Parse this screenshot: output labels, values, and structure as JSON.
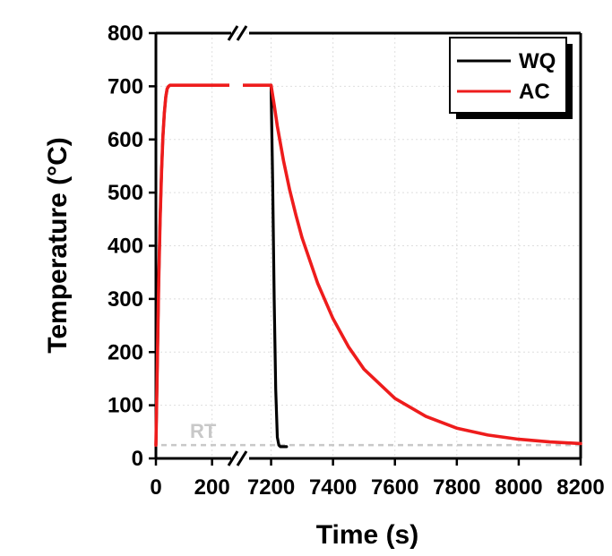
{
  "chart_data": {
    "type": "line",
    "xlabel": "Time (s)",
    "ylabel": "Temperature (°C)",
    "ylim": [
      0,
      800
    ],
    "y_ticks": [
      0,
      100,
      200,
      300,
      400,
      500,
      600,
      700,
      800
    ],
    "y_tick_labels": [
      "0",
      "100",
      "200",
      "300",
      "400",
      "500",
      "600",
      "700",
      "800"
    ],
    "x_axis_break": true,
    "x_segments": [
      {
        "range": [
          0,
          300
        ],
        "ticks": [
          0,
          200
        ],
        "tick_labels": [
          "0",
          "200"
        ]
      },
      {
        "range": [
          7100,
          8200
        ],
        "ticks": [
          7200,
          7400,
          7600,
          7800,
          8000,
          8200
        ],
        "tick_labels": [
          "7200",
          "7400",
          "7600",
          "7800",
          "8000",
          "8200"
        ]
      }
    ],
    "grid": true,
    "legend": {
      "placement": "top-right",
      "entries": [
        "WQ",
        "AC"
      ]
    },
    "annotations": [
      {
        "text": "RT",
        "y": 25,
        "line_style": "dashed",
        "color": "#c8c8c8"
      }
    ],
    "series": [
      {
        "name": "WQ",
        "color": "#000000",
        "x": [
          0,
          5,
          10,
          15,
          20,
          25,
          30,
          35,
          40,
          45,
          50,
          100,
          200,
          300,
          7100,
          7200,
          7205,
          7210,
          7215,
          7220,
          7225,
          7230,
          7240,
          7250
        ],
        "y": [
          25,
          180,
          330,
          450,
          540,
          605,
          650,
          680,
          695,
          700,
          702,
          702,
          702,
          702,
          702,
          702,
          520,
          300,
          130,
          40,
          25,
          22,
          22,
          22
        ]
      },
      {
        "name": "AC",
        "color": "#ee1c1c",
        "x": [
          0,
          5,
          10,
          15,
          20,
          25,
          30,
          35,
          40,
          45,
          50,
          100,
          200,
          300,
          7100,
          7200,
          7210,
          7220,
          7240,
          7260,
          7280,
          7300,
          7350,
          7400,
          7450,
          7500,
          7600,
          7700,
          7800,
          7900,
          8000,
          8100,
          8200
        ],
        "y": [
          25,
          180,
          330,
          450,
          540,
          605,
          650,
          680,
          695,
          700,
          702,
          702,
          702,
          702,
          702,
          702,
          665,
          625,
          560,
          505,
          458,
          415,
          330,
          263,
          210,
          168,
          113,
          79,
          57,
          44,
          36,
          31,
          28
        ]
      }
    ]
  }
}
